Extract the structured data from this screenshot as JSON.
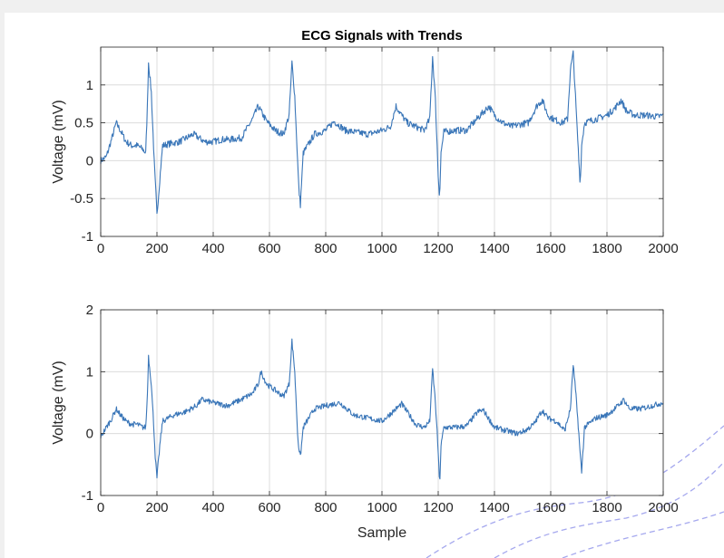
{
  "figure": {
    "background": "#f0f0f0",
    "plot_background": "#ffffff"
  },
  "chart_data": [
    {
      "type": "line",
      "title": "ECG Signals with Trends",
      "xlabel": "",
      "ylabel": "Voltage (mV)",
      "xlim": [
        0,
        2000
      ],
      "ylim": [
        -1,
        1.5
      ],
      "xticks": [
        0,
        200,
        400,
        600,
        800,
        1000,
        1200,
        1400,
        1600,
        1800,
        2000
      ],
      "xtick_labels": [
        "0",
        "200",
        "400",
        "600",
        "800",
        "1000",
        "1200",
        "1400",
        "1600",
        "1800",
        "2000"
      ],
      "yticks": [
        -1,
        -0.5,
        0,
        0.5,
        1
      ],
      "ytick_labels": [
        "-1",
        "-0.5",
        "0",
        "0.5",
        "1"
      ],
      "grid": true,
      "line_color": "#3a76b8",
      "series": [
        {
          "x": [
            0,
            20,
            40,
            55,
            70,
            90,
            110,
            130,
            150,
            160,
            165,
            170,
            180,
            190,
            195,
            200,
            210,
            220,
            240,
            280,
            330,
            370,
            400,
            430,
            460,
            500,
            540,
            560,
            570,
            590,
            620,
            650,
            670,
            680,
            690,
            700,
            705,
            710,
            720,
            760,
            800,
            830,
            870,
            900,
            950,
            1000,
            1030,
            1050,
            1070,
            1090,
            1120,
            1150,
            1170,
            1180,
            1190,
            1200,
            1205,
            1210,
            1220,
            1260,
            1300,
            1350,
            1380,
            1400,
            1430,
            1460,
            1490,
            1520,
            1550,
            1570,
            1590,
            1610,
            1640,
            1660,
            1670,
            1680,
            1690,
            1700,
            1705,
            1710,
            1720,
            1760,
            1800,
            1830,
            1850,
            1870,
            1900,
            1940,
            1980,
            2000
          ],
          "values": [
            0,
            0.05,
            0.3,
            0.5,
            0.4,
            0.25,
            0.2,
            0.2,
            0.15,
            0.1,
            0.6,
            1.3,
            0.9,
            0.0,
            -0.35,
            -0.72,
            -0.25,
            0.2,
            0.22,
            0.25,
            0.35,
            0.25,
            0.25,
            0.28,
            0.28,
            0.3,
            0.55,
            0.72,
            0.65,
            0.52,
            0.4,
            0.35,
            0.6,
            1.3,
            0.85,
            0.0,
            -0.4,
            -0.58,
            0.1,
            0.35,
            0.4,
            0.52,
            0.4,
            0.38,
            0.35,
            0.4,
            0.45,
            0.72,
            0.6,
            0.5,
            0.45,
            0.4,
            0.55,
            1.38,
            0.8,
            -0.2,
            -0.47,
            0.1,
            0.38,
            0.4,
            0.4,
            0.6,
            0.72,
            0.6,
            0.5,
            0.45,
            0.48,
            0.5,
            0.72,
            0.8,
            0.6,
            0.55,
            0.5,
            0.55,
            1.2,
            1.42,
            0.7,
            0.0,
            -0.3,
            0.2,
            0.5,
            0.55,
            0.6,
            0.7,
            0.8,
            0.65,
            0.6,
            0.6,
            0.58,
            0.6
          ]
        }
      ]
    },
    {
      "type": "line",
      "title": "",
      "xlabel": "Sample",
      "ylabel": "Voltage (mV)",
      "xlim": [
        0,
        2000
      ],
      "ylim": [
        -1,
        2
      ],
      "xticks": [
        0,
        200,
        400,
        600,
        800,
        1000,
        1200,
        1400,
        1600,
        1800,
        2000
      ],
      "xtick_labels": [
        "0",
        "200",
        "400",
        "600",
        "800",
        "1000",
        "1200",
        "1400",
        "1600",
        "1800",
        "2000"
      ],
      "yticks": [
        -1,
        0,
        1,
        2
      ],
      "ytick_labels": [
        "-1",
        "0",
        "1",
        "2"
      ],
      "grid": true,
      "line_color": "#3a76b8",
      "series": [
        {
          "x": [
            0,
            20,
            40,
            55,
            70,
            90,
            110,
            130,
            150,
            160,
            165,
            170,
            180,
            190,
            195,
            200,
            210,
            220,
            260,
            300,
            340,
            360,
            400,
            450,
            500,
            540,
            560,
            570,
            590,
            620,
            650,
            670,
            680,
            690,
            700,
            705,
            710,
            720,
            760,
            800,
            850,
            900,
            950,
            1000,
            1050,
            1070,
            1090,
            1120,
            1150,
            1170,
            1180,
            1190,
            1200,
            1205,
            1210,
            1220,
            1260,
            1300,
            1340,
            1360,
            1400,
            1440,
            1480,
            1510,
            1540,
            1570,
            1590,
            1620,
            1650,
            1670,
            1680,
            1690,
            1700,
            1705,
            1710,
            1720,
            1760,
            1800,
            1840,
            1860,
            1880,
            1920,
            1960,
            2000
          ],
          "values": [
            -0.05,
            0.1,
            0.25,
            0.4,
            0.3,
            0.2,
            0.15,
            0.15,
            0.1,
            0.1,
            0.5,
            1.25,
            0.8,
            0.0,
            -0.45,
            -0.72,
            -0.2,
            0.2,
            0.3,
            0.35,
            0.45,
            0.55,
            0.5,
            0.45,
            0.55,
            0.65,
            0.8,
            1.0,
            0.8,
            0.7,
            0.6,
            0.8,
            1.5,
            1.0,
            0.0,
            -0.25,
            -0.38,
            0.1,
            0.4,
            0.45,
            0.5,
            0.3,
            0.25,
            0.2,
            0.4,
            0.48,
            0.35,
            0.15,
            0.1,
            0.2,
            1.05,
            0.5,
            -0.3,
            -0.83,
            -0.2,
            0.1,
            0.1,
            0.12,
            0.35,
            0.38,
            0.1,
            0.05,
            0.0,
            0.05,
            0.15,
            0.38,
            0.25,
            0.2,
            0.05,
            0.4,
            1.12,
            0.6,
            0.0,
            -0.35,
            -0.62,
            0.1,
            0.25,
            0.3,
            0.45,
            0.55,
            0.4,
            0.4,
            0.45,
            0.5
          ]
        }
      ]
    }
  ]
}
